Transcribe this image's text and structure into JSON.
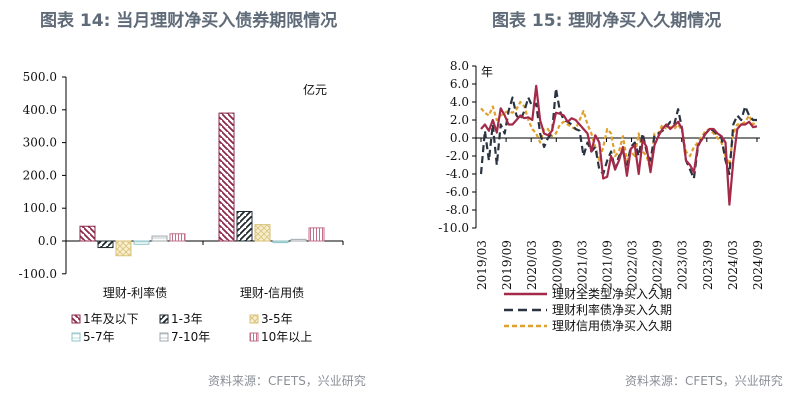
{
  "left": {
    "title": "图表 14: 当月理财净买入债券期限情况",
    "unit_label": "亿元",
    "source": "资料来源：CFETS，兴业研究"
  },
  "right": {
    "title": "图表 15: 理财净买入久期情况",
    "unit_label": "年",
    "source": "资料来源：CFETS，兴业研究"
  },
  "chart_data": [
    {
      "type": "bar",
      "title": "图表 14: 当月理财净买入债券期限情况",
      "ylabel": "亿元",
      "xlabel": "",
      "ylim": [
        -100,
        500
      ],
      "yticks": [
        "500.0",
        "400.0",
        "300.0",
        "200.0",
        "100.0",
        "0.0",
        "-100.0"
      ],
      "categories": [
        "理财-利率债",
        "理财-信用债"
      ],
      "series": [
        {
          "name": "1年及以下",
          "values": [
            45,
            390
          ],
          "color": "#8b2a4a",
          "pattern": "diag-down"
        },
        {
          "name": "1-3年",
          "values": [
            -20,
            90
          ],
          "color": "#1f2a30",
          "pattern": "diag-up"
        },
        {
          "name": "3-5年",
          "values": [
            -45,
            50
          ],
          "color": "#d9c27a",
          "pattern": "cross"
        },
        {
          "name": "5-7年",
          "values": [
            -10,
            -5
          ],
          "color": "#8fc4c8",
          "pattern": "hline"
        },
        {
          "name": "7-10年",
          "values": [
            15,
            5
          ],
          "color": "#a0a8ac",
          "pattern": "hline"
        },
        {
          "name": "10年以上",
          "values": [
            22,
            40
          ],
          "color": "#c0708a",
          "pattern": "vline"
        }
      ],
      "legend_position": "bottom",
      "grid": false
    },
    {
      "type": "line",
      "title": "图表 15: 理财净买入久期情况",
      "ylabel": "年",
      "ylim": [
        -10,
        8
      ],
      "yticks": [
        "8.0",
        "6.0",
        "4.0",
        "2.0",
        "0.0",
        "-2.0",
        "-4.0",
        "-6.0",
        "-8.0",
        "-10.0"
      ],
      "x_ticks": [
        "2019/03",
        "2019/09",
        "2020/03",
        "2020/09",
        "2021/03",
        "2021/09",
        "2022/03",
        "2022/09",
        "2023/03",
        "2023/09",
        "2024/03",
        "2024/09"
      ],
      "x_start": "2019/03",
      "x_end": "2024/09",
      "legend_position": "bottom",
      "grid": false,
      "series": [
        {
          "name": "理财全类型净买入久期",
          "style": "solid",
          "color": "#a52a4a",
          "values": [
            1.0,
            1.5,
            0.8,
            2.0,
            0.6,
            3.3,
            2.5,
            1.5,
            1.5,
            2.0,
            2.5,
            2.2,
            2.3,
            2.0,
            5.8,
            2.0,
            0.5,
            0.3,
            0.8,
            2.8,
            2.7,
            2.5,
            1.8,
            2.2,
            2.0,
            1.5,
            1.0,
            0.5,
            -1.5,
            0.3,
            -0.5,
            -4.5,
            -4.3,
            -2.0,
            -3.5,
            -2.5,
            -1.0,
            -4.2,
            -1.2,
            -0.8,
            -4.0,
            -0.2,
            -1.0,
            -3.8,
            -0.8,
            0.2,
            1.0,
            1.5,
            1.0,
            1.4,
            1.8,
            1.0,
            -2.5,
            -3.0,
            -3.8,
            -0.8,
            -0.2,
            0.5,
            1.0,
            1.0,
            0.5,
            0.2,
            -0.5,
            -7.4,
            -2.5,
            1.0,
            1.5,
            1.5,
            1.8,
            1.2,
            1.3
          ]
        },
        {
          "name": "理财利率债净买入久期",
          "style": "dashed",
          "color": "#2a3440",
          "values": [
            -4.0,
            0.8,
            -2.5,
            1.5,
            -3.0,
            1.5,
            0.5,
            3.0,
            4.5,
            2.5,
            2.0,
            3.0,
            4.5,
            3.5,
            3.8,
            0.5,
            -1.0,
            0.0,
            0.5,
            5.5,
            3.0,
            2.0,
            1.8,
            1.5,
            1.0,
            0.8,
            -2.0,
            -0.5,
            -1.5,
            -1.0,
            -3.5,
            -4.0,
            -2.5,
            -1.5,
            -3.5,
            -2.0,
            -1.5,
            -3.0,
            -1.0,
            -0.5,
            -2.0,
            0.5,
            -1.5,
            -2.5,
            0.3,
            0.5,
            0.8,
            1.2,
            1.8,
            1.5,
            3.2,
            1.0,
            -2.5,
            -3.5,
            -4.5,
            -1.0,
            0.0,
            0.5,
            1.0,
            0.8,
            0.3,
            0.0,
            -2.5,
            -4.0,
            1.5,
            2.5,
            2.0,
            3.5,
            2.5,
            2.0,
            2.0
          ]
        },
        {
          "name": "理财信用债净买入久期",
          "style": "dotted",
          "color": "#e0a030",
          "values": [
            3.3,
            2.8,
            2.5,
            3.5,
            2.0,
            2.5,
            2.8,
            3.0,
            2.8,
            3.2,
            4.0,
            3.5,
            2.0,
            1.0,
            0.5,
            -0.5,
            1.0,
            1.0,
            0.2,
            0.5,
            1.5,
            1.8,
            1.5,
            1.2,
            1.0,
            2.0,
            3.0,
            1.5,
            0.5,
            -1.0,
            -2.5,
            -1.0,
            1.0,
            0.5,
            -2.0,
            -1.5,
            0.2,
            -2.5,
            -1.5,
            -2.0,
            0.5,
            -1.5,
            -2.0,
            -3.5,
            0.5,
            0.5,
            1.5,
            1.0,
            1.2,
            1.0,
            1.5,
            0.8,
            -1.5,
            -2.0,
            -1.0,
            -0.5,
            0.2,
            0.8,
            1.0,
            0.5,
            0.0,
            -0.5,
            -2.0,
            -3.0,
            0.5,
            1.5,
            1.5,
            1.8,
            2.5,
            1.5,
            1.8
          ]
        }
      ]
    }
  ]
}
